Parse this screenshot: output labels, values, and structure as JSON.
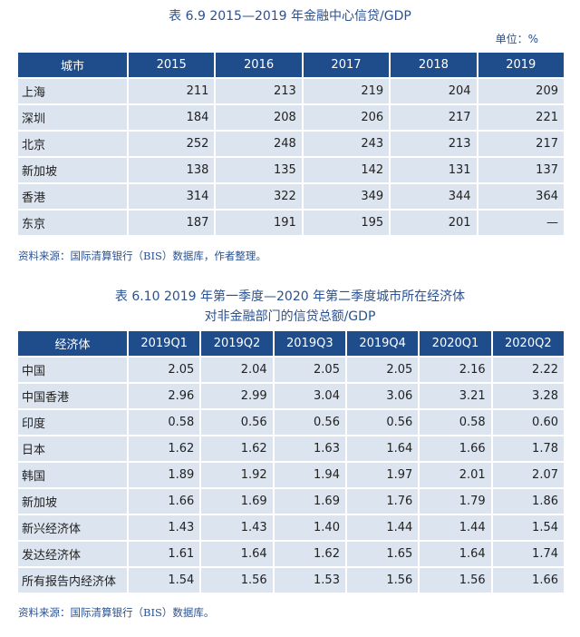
{
  "table1": {
    "title": "表 6.9   2015—2019 年金融中心信贷/GDP",
    "unit": "单位：%",
    "headers": [
      "城市",
      "2015",
      "2016",
      "2017",
      "2018",
      "2019"
    ],
    "rows": [
      [
        "上海",
        "211",
        "213",
        "219",
        "204",
        "209"
      ],
      [
        "深圳",
        "184",
        "208",
        "206",
        "217",
        "221"
      ],
      [
        "北京",
        "252",
        "248",
        "243",
        "213",
        "217"
      ],
      [
        "新加坡",
        "138",
        "135",
        "142",
        "131",
        "137"
      ],
      [
        "香港",
        "314",
        "322",
        "349",
        "344",
        "364"
      ],
      [
        "东京",
        "187",
        "191",
        "195",
        "201",
        "—"
      ]
    ],
    "source": "资料来源：国际清算银行（BIS）数据库，作者整理。"
  },
  "table2": {
    "title_line1": "表 6.10   2019 年第一季度—2020 年第二季度城市所在经济体",
    "title_line2": "对非金融部门的信贷总额/GDP",
    "headers": [
      "经济体",
      "2019Q1",
      "2019Q2",
      "2019Q3",
      "2019Q4",
      "2020Q1",
      "2020Q2"
    ],
    "rows": [
      [
        "中国",
        "2.05",
        "2.04",
        "2.05",
        "2.05",
        "2.16",
        "2.22"
      ],
      [
        "中国香港",
        "2.96",
        "2.99",
        "3.04",
        "3.06",
        "3.21",
        "3.28"
      ],
      [
        "印度",
        "0.58",
        "0.56",
        "0.56",
        "0.56",
        "0.58",
        "0.60"
      ],
      [
        "日本",
        "1.62",
        "1.62",
        "1.63",
        "1.64",
        "1.66",
        "1.78"
      ],
      [
        "韩国",
        "1.89",
        "1.92",
        "1.94",
        "1.97",
        "2.01",
        "2.07"
      ],
      [
        "新加坡",
        "1.66",
        "1.69",
        "1.69",
        "1.76",
        "1.79",
        "1.86"
      ],
      [
        "新兴经济体",
        "1.43",
        "1.43",
        "1.40",
        "1.44",
        "1.44",
        "1.54"
      ],
      [
        "发达经济体",
        "1.61",
        "1.64",
        "1.62",
        "1.65",
        "1.64",
        "1.74"
      ],
      [
        "所有报告内经济体",
        "1.54",
        "1.56",
        "1.53",
        "1.56",
        "1.56",
        "1.66"
      ]
    ],
    "source": "资料来源：国际清算银行（BIS）数据库。"
  }
}
